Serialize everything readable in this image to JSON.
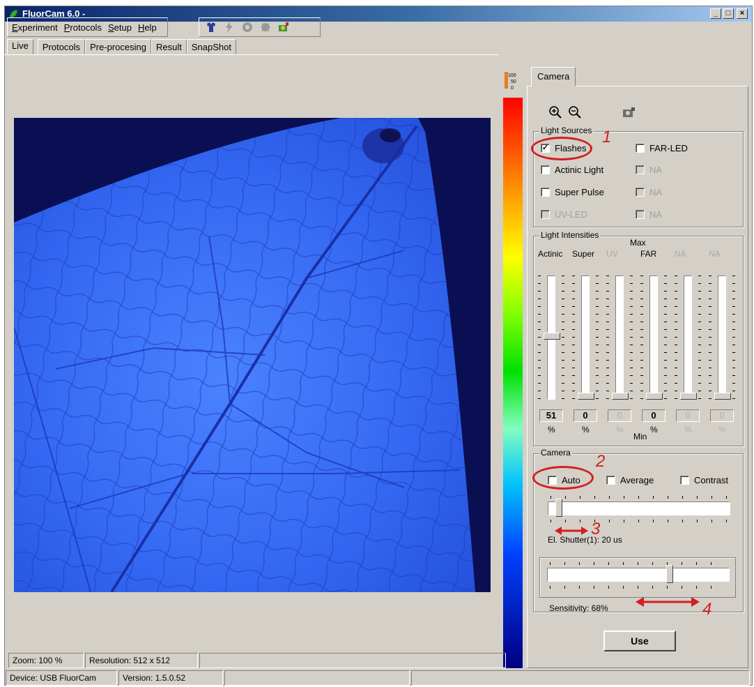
{
  "window": {
    "title": "FluorCam 6.0 -",
    "minimize": "_",
    "maximize": "□",
    "close": "×"
  },
  "menu": [
    "Experiment",
    "Protocols",
    "Setup",
    "Help"
  ],
  "toolbar_icons": [
    "shirt-icon",
    "flash-icon",
    "disc-icon",
    "gear-flash-icon",
    "camera-color-icon"
  ],
  "tabs": [
    "Live",
    "Protocols",
    "Pre-procesing",
    "Result",
    "SnapShot"
  ],
  "right_tab": "Camera",
  "light_sources": {
    "label": "Light Sources",
    "flashes": "Flashes",
    "flashes_checked": true,
    "far_led": "FAR-LED",
    "actinic": "Actinic Light",
    "na1": "NA",
    "super_pulse": "Super Pulse",
    "na2": "NA",
    "uv_led": "UV-LED",
    "na3": "NA"
  },
  "light_intensities": {
    "label": "Light Intensities",
    "max": "Max",
    "min": "Min",
    "columns": [
      {
        "name": "Actinic",
        "value": "51",
        "unit": "%",
        "enabled": true,
        "level": 0.51
      },
      {
        "name": "Super",
        "value": "0",
        "unit": "%",
        "enabled": true,
        "level": 0
      },
      {
        "name": "UV",
        "value": "0",
        "unit": "%",
        "enabled": false,
        "level": 0
      },
      {
        "name": "FAR",
        "value": "0",
        "unit": "%",
        "enabled": true,
        "level": 0
      },
      {
        "name": "NA",
        "value": "0",
        "unit": "%",
        "enabled": false,
        "level": 0
      },
      {
        "name": "NA",
        "value": "0",
        "unit": "%",
        "enabled": false,
        "level": 0
      }
    ]
  },
  "camera": {
    "label": "Camera",
    "auto": "Auto",
    "average": "Average",
    "contrast": "Contrast",
    "shutter_text": "El. Shutter(1): 20 us",
    "shutter_level": 0.04,
    "sensitivity_text": "Sensitivity: 68%",
    "sensitivity_level": 0.68
  },
  "annotations": [
    "1",
    "2",
    "3",
    "4"
  ],
  "use_button": "Use",
  "status": {
    "zoom": "Zoom: 100 %",
    "resolution": "Resolution: 512 x 512",
    "device": "Device: USB FluorCam",
    "version": "Version: 1.5.0.52"
  },
  "colors": {
    "titlebar": "#0a246a",
    "annotation": "#d21f1f",
    "leaf": "#2d5ef0",
    "background": "#0a0f54"
  }
}
